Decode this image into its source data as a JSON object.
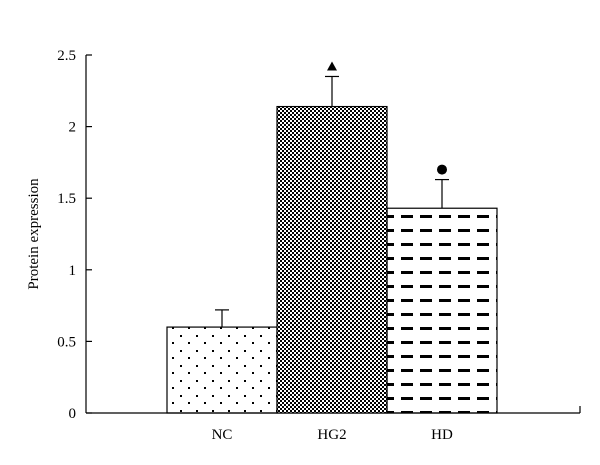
{
  "chart_data": {
    "type": "bar",
    "categories": [
      "NC",
      "HG2",
      "HD"
    ],
    "values": [
      0.6,
      2.14,
      1.43
    ],
    "errors": [
      0.12,
      0.21,
      0.2
    ],
    "annotations": [
      "",
      "▲",
      "●"
    ],
    "patterns": [
      "dots",
      "checker",
      "dashes"
    ],
    "title": "",
    "xlabel": "",
    "ylabel": "Protein expression",
    "ylim": [
      0,
      2.5
    ],
    "yticks": [
      0,
      0.5,
      1,
      1.5,
      2,
      2.5
    ],
    "ytick_labels": [
      "0",
      "0.5",
      "1",
      "1.5",
      "2",
      "2.5"
    ],
    "grid": false,
    "legend": "none"
  }
}
